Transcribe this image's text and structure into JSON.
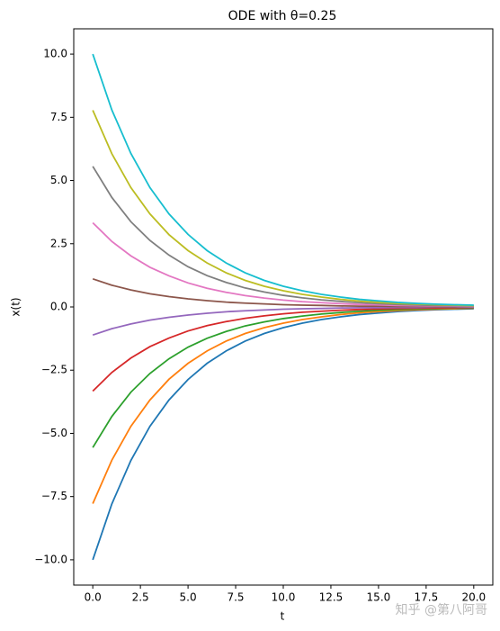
{
  "chart_data": {
    "type": "line",
    "title": "ODE with θ=0.25",
    "x_label": "t",
    "y_label": "x(t)",
    "watermark": "知乎 @第八阿哥",
    "x": [
      0,
      1,
      2,
      3,
      4,
      5,
      6,
      7,
      8,
      9,
      10,
      11,
      12,
      13,
      14,
      15,
      16,
      17,
      18,
      19,
      20
    ],
    "series": [
      {
        "color": "#1f77b4",
        "values": [
          -10,
          -7.79,
          -6.07,
          -4.72,
          -3.68,
          -2.87,
          -2.23,
          -1.74,
          -1.35,
          -1.05,
          -0.82,
          -0.64,
          -0.5,
          -0.39,
          -0.3,
          -0.24,
          -0.18,
          -0.14,
          -0.11,
          -0.09,
          -0.07
        ]
      },
      {
        "color": "#ff7f0e",
        "values": [
          -7.78,
          -6.06,
          -4.72,
          -3.68,
          -2.86,
          -2.23,
          -1.74,
          -1.35,
          -1.05,
          -0.82,
          -0.64,
          -0.5,
          -0.39,
          -0.3,
          -0.23,
          -0.18,
          -0.14,
          -0.11,
          -0.09,
          -0.07,
          -0.05
        ]
      },
      {
        "color": "#2ca02c",
        "values": [
          -5.56,
          -4.33,
          -3.37,
          -2.63,
          -2.05,
          -1.59,
          -1.24,
          -0.97,
          -0.75,
          -0.59,
          -0.46,
          -0.36,
          -0.28,
          -0.22,
          -0.17,
          -0.13,
          -0.1,
          -0.08,
          -0.06,
          -0.05,
          -0.04
        ]
      },
      {
        "color": "#d62728",
        "values": [
          -3.33,
          -2.59,
          -2.02,
          -1.57,
          -1.23,
          -0.95,
          -0.74,
          -0.58,
          -0.45,
          -0.35,
          -0.27,
          -0.21,
          -0.17,
          -0.13,
          -0.1,
          -0.08,
          -0.06,
          -0.05,
          -0.04,
          -0.03,
          -0.02
        ]
      },
      {
        "color": "#9467bd",
        "values": [
          -1.11,
          -0.86,
          -0.67,
          -0.52,
          -0.41,
          -0.32,
          -0.25,
          -0.19,
          -0.15,
          -0.12,
          -0.09,
          -0.07,
          -0.06,
          -0.04,
          -0.03,
          -0.03,
          -0.02,
          -0.02,
          -0.01,
          -0.01,
          -0.01
        ]
      },
      {
        "color": "#8c564b",
        "values": [
          1.11,
          0.86,
          0.67,
          0.52,
          0.41,
          0.32,
          0.25,
          0.19,
          0.15,
          0.12,
          0.09,
          0.07,
          0.06,
          0.04,
          0.03,
          0.03,
          0.02,
          0.02,
          0.01,
          0.01,
          0.01
        ]
      },
      {
        "color": "#e377c2",
        "values": [
          3.33,
          2.59,
          2.02,
          1.57,
          1.23,
          0.95,
          0.74,
          0.58,
          0.45,
          0.35,
          0.27,
          0.21,
          0.17,
          0.13,
          0.1,
          0.08,
          0.06,
          0.05,
          0.04,
          0.03,
          0.02
        ]
      },
      {
        "color": "#7f7f7f",
        "values": [
          5.56,
          4.33,
          3.37,
          2.63,
          2.05,
          1.59,
          1.24,
          0.97,
          0.75,
          0.59,
          0.46,
          0.36,
          0.28,
          0.22,
          0.17,
          0.13,
          0.1,
          0.08,
          0.06,
          0.05,
          0.04
        ]
      },
      {
        "color": "#bcbd22",
        "values": [
          7.78,
          6.06,
          4.72,
          3.68,
          2.86,
          2.23,
          1.74,
          1.35,
          1.05,
          0.82,
          0.64,
          0.5,
          0.39,
          0.3,
          0.23,
          0.18,
          0.14,
          0.11,
          0.09,
          0.07,
          0.05
        ]
      },
      {
        "color": "#17becf",
        "values": [
          10,
          7.79,
          6.07,
          4.72,
          3.68,
          2.87,
          2.23,
          1.74,
          1.35,
          1.05,
          0.82,
          0.64,
          0.5,
          0.39,
          0.3,
          0.24,
          0.18,
          0.14,
          0.11,
          0.09,
          0.07
        ]
      }
    ],
    "xlim": [
      -1,
      21
    ],
    "xticks": [
      {
        "value": 0,
        "label": "0.0"
      },
      {
        "value": 2.5,
        "label": "2.5"
      },
      {
        "value": 5,
        "label": "5.0"
      },
      {
        "value": 7.5,
        "label": "7.5"
      },
      {
        "value": 10,
        "label": "10.0"
      },
      {
        "value": 12.5,
        "label": "12.5"
      },
      {
        "value": 15,
        "label": "15.0"
      },
      {
        "value": 17.5,
        "label": "17.5"
      },
      {
        "value": 20,
        "label": "20.0"
      }
    ],
    "ylim": [
      -11,
      11
    ],
    "yticks": [
      {
        "value": -10,
        "label": "−10.0"
      },
      {
        "value": -7.5,
        "label": "−7.5"
      },
      {
        "value": -5,
        "label": "−5.0"
      },
      {
        "value": -2.5,
        "label": "−2.5"
      },
      {
        "value": 0,
        "label": "0.0"
      },
      {
        "value": 2.5,
        "label": "2.5"
      },
      {
        "value": 5,
        "label": "5.0"
      },
      {
        "value": 7.5,
        "label": "7.5"
      },
      {
        "value": 10,
        "label": "10.0"
      }
    ],
    "grid": false
  }
}
